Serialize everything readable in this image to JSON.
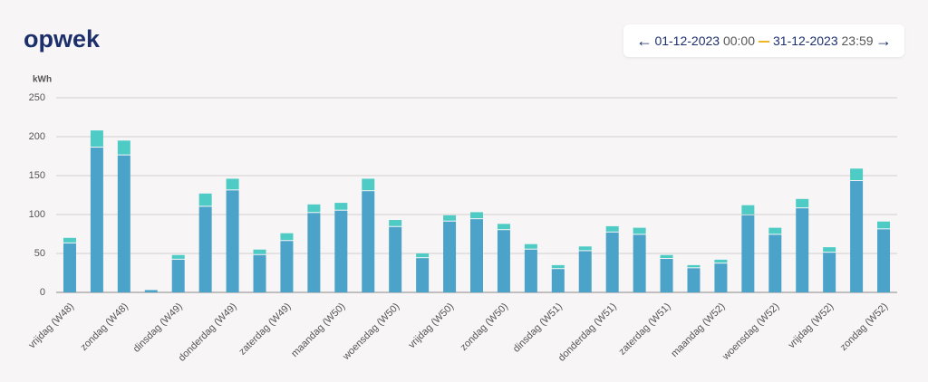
{
  "header": {
    "title": "opwek"
  },
  "date_range": {
    "start_date": "01-12-2023",
    "start_time": "00:00",
    "end_date": "31-12-2023",
    "end_time": "23:59"
  },
  "chart_data": {
    "type": "stacked_bar",
    "y_axis_label": "kWh",
    "categories": [
      "vrijdag (W48)",
      null,
      "zondag (W48)",
      null,
      "dinsdag (W49)",
      null,
      "donderdag (W49)",
      null,
      "zaterdag (W49)",
      null,
      "maandag (W50)",
      null,
      "woensdag (W50)",
      null,
      "vrijdag (W50)",
      null,
      "zondag (W50)",
      null,
      "dinsdag (W51)",
      null,
      "donderdag (W51)",
      null,
      "zaterdag (W51)",
      null,
      "maandag (W52)",
      null,
      "woensdag (W52)",
      null,
      "vrijdag (W52)",
      null,
      "zondag (W52)"
    ],
    "series": [
      {
        "color": "#4ba3c9",
        "values": [
          63,
          186,
          176,
          3,
          42,
          110,
          131,
          48,
          66,
          102,
          105,
          130,
          84,
          44,
          91,
          94,
          80,
          55,
          30,
          53,
          77,
          74,
          43,
          31,
          37,
          99,
          74,
          108,
          51,
          143,
          81
        ]
      },
      {
        "color": "#4ecbc4",
        "values": [
          7,
          22,
          19,
          1,
          6,
          17,
          15,
          7,
          10,
          11,
          10,
          16,
          9,
          6,
          8,
          9,
          8,
          7,
          5,
          6,
          8,
          9,
          5,
          4,
          5,
          13,
          9,
          12,
          7,
          16,
          10
        ]
      }
    ],
    "ylim": [
      0,
      250
    ],
    "yticks": [
      0,
      50,
      100,
      150,
      200,
      250
    ],
    "grid": true
  }
}
